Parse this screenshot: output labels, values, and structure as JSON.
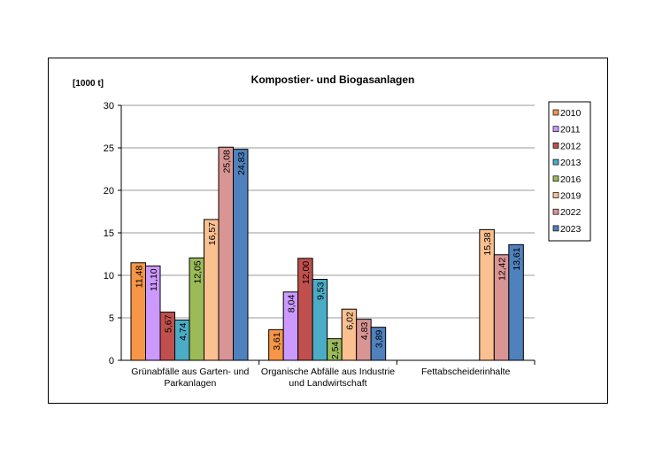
{
  "chart_data": {
    "type": "bar",
    "title": "Kompostier- und Biogasanlagen",
    "ylabel": "[1000 t]",
    "ylim": [
      0,
      30
    ],
    "yticks": [
      0,
      5,
      10,
      15,
      20,
      25,
      30
    ],
    "grid": true,
    "legend": "right",
    "categories": [
      [
        "Grünabfälle aus Garten- und",
        "Parkanlagen"
      ],
      [
        "Organische Abfälle aus Industrie",
        "und Landwirtschaft"
      ],
      [
        "Fettabscheiderinhalte"
      ]
    ],
    "series": [
      {
        "name": "2010",
        "color": "#F79646",
        "values": [
          11.48,
          3.61,
          null
        ],
        "labels": [
          "11,48",
          "3,61",
          ""
        ]
      },
      {
        "name": "2011",
        "color": "#CC99FF",
        "values": [
          11.1,
          8.04,
          null
        ],
        "labels": [
          "11,10",
          "8,04",
          ""
        ]
      },
      {
        "name": "2012",
        "color": "#C0504D",
        "values": [
          5.67,
          12.0,
          null
        ],
        "labels": [
          "5,67",
          "12,00",
          ""
        ]
      },
      {
        "name": "2013",
        "color": "#4BACC6",
        "values": [
          4.74,
          9.53,
          null
        ],
        "labels": [
          "4,74",
          "9,53",
          ""
        ]
      },
      {
        "name": "2016",
        "color": "#9BBB59",
        "values": [
          12.05,
          2.54,
          null
        ],
        "labels": [
          "12,05",
          "2,54",
          ""
        ]
      },
      {
        "name": "2019",
        "color": "#FAC090",
        "values": [
          16.57,
          6.02,
          15.38
        ],
        "labels": [
          "16,57",
          "6,02",
          "15,38"
        ]
      },
      {
        "name": "2022",
        "color": "#D99594",
        "values": [
          25.08,
          4.83,
          12.42
        ],
        "labels": [
          "25,08",
          "4,83",
          "12,42"
        ]
      },
      {
        "name": "2023",
        "color": "#4F81BD",
        "values": [
          24.83,
          3.89,
          13.61
        ],
        "labels": [
          "24,83",
          "3,89",
          "13,61"
        ]
      }
    ]
  }
}
